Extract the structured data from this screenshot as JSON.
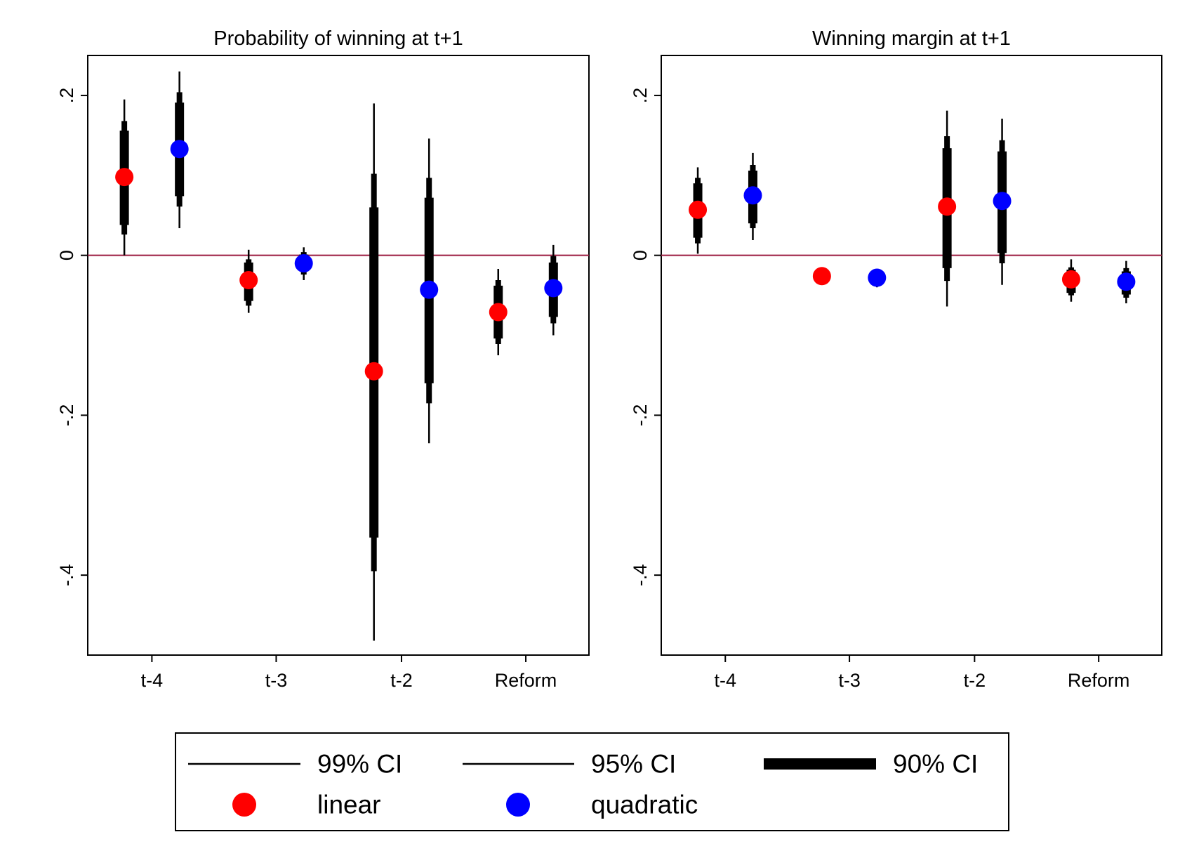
{
  "legend": {
    "items": [
      {
        "label": "99% CI",
        "kind": "ci99"
      },
      {
        "label": "95% CI",
        "kind": "ci95"
      },
      {
        "label": "90% CI",
        "kind": "ci90"
      },
      {
        "label": "linear",
        "kind": "marker",
        "color": "#ff0000"
      },
      {
        "label": "quadratic",
        "kind": "marker",
        "color": "#0000ff"
      }
    ]
  },
  "colors": {
    "linear": "#ff0000",
    "quadratic": "#0000ff",
    "zero_line": "#9b1b40",
    "ci": "#000000"
  },
  "chart_data": [
    {
      "type": "scatter",
      "title": "Probability of winning at t+1",
      "xlabel": "",
      "ylabel": "",
      "categories": [
        "t-4",
        "t-3",
        "t-2",
        "Reform"
      ],
      "ylim": [
        -0.5,
        0.25
      ],
      "yticks": [
        ".2",
        "0",
        "-.2",
        "-.4"
      ],
      "ytick_values": [
        0.2,
        0,
        -0.2,
        -0.4
      ],
      "reference_line": 0,
      "grid": false,
      "series": [
        {
          "name": "linear",
          "color": "#ff0000",
          "points": [
            {
              "category": "t-4",
              "estimate": 0.098,
              "ci90": [
                0.038,
                0.156
              ],
              "ci95": [
                0.026,
                0.168
              ],
              "ci99": [
                0.0,
                0.195
              ]
            },
            {
              "category": "t-3",
              "estimate": -0.031,
              "ci90": [
                -0.057,
                -0.009
              ],
              "ci95": [
                -0.063,
                -0.005
              ],
              "ci99": [
                -0.072,
                0.007
              ]
            },
            {
              "category": "t-2",
              "estimate": -0.145,
              "ci90": [
                -0.353,
                0.06
              ],
              "ci95": [
                -0.395,
                0.102
              ],
              "ci99": [
                -0.482,
                0.19
              ]
            },
            {
              "category": "Reform",
              "estimate": -0.071,
              "ci90": [
                -0.104,
                -0.038
              ],
              "ci95": [
                -0.111,
                -0.031
              ],
              "ci99": [
                -0.125,
                -0.017
              ]
            }
          ]
        },
        {
          "name": "quadratic",
          "color": "#0000ff",
          "points": [
            {
              "category": "t-4",
              "estimate": 0.133,
              "ci90": [
                0.074,
                0.191
              ],
              "ci95": [
                0.061,
                0.204
              ],
              "ci99": [
                0.034,
                0.23
              ]
            },
            {
              "category": "t-3",
              "estimate": -0.01,
              "ci90": [
                -0.02,
                0.001
              ],
              "ci95": [
                -0.024,
                0.004
              ],
              "ci99": [
                -0.031,
                0.01
              ]
            },
            {
              "category": "t-2",
              "estimate": -0.043,
              "ci90": [
                -0.16,
                0.072
              ],
              "ci95": [
                -0.185,
                0.097
              ],
              "ci99": [
                -0.235,
                0.146
              ]
            },
            {
              "category": "Reform",
              "estimate": -0.041,
              "ci90": [
                -0.077,
                -0.009
              ],
              "ci95": [
                -0.085,
                -0.001
              ],
              "ci99": [
                -0.1,
                0.013
              ]
            }
          ]
        }
      ]
    },
    {
      "type": "scatter",
      "title": "Winning margin at t+1",
      "xlabel": "",
      "ylabel": "",
      "categories": [
        "t-4",
        "t-3",
        "t-2",
        "Reform"
      ],
      "ylim": [
        -0.5,
        0.25
      ],
      "yticks": [
        ".2",
        "0",
        "-.2",
        "-.4"
      ],
      "ytick_values": [
        0.2,
        0,
        -0.2,
        -0.4
      ],
      "reference_line": 0,
      "grid": false,
      "series": [
        {
          "name": "linear",
          "color": "#ff0000",
          "points": [
            {
              "category": "t-4",
              "estimate": 0.057,
              "ci90": [
                0.022,
                0.09
              ],
              "ci95": [
                0.015,
                0.097
              ],
              "ci99": [
                0.002,
                0.11
              ]
            },
            {
              "category": "t-3",
              "estimate": -0.026,
              "ci90": [
                -0.028,
                -0.024
              ],
              "ci95": [
                -0.029,
                -0.023
              ],
              "ci99": [
                -0.03,
                -0.022
              ]
            },
            {
              "category": "t-2",
              "estimate": 0.061,
              "ci90": [
                -0.016,
                0.134
              ],
              "ci95": [
                -0.032,
                0.149
              ],
              "ci99": [
                -0.064,
                0.181
              ]
            },
            {
              "category": "Reform",
              "estimate": -0.03,
              "ci90": [
                -0.047,
                -0.018
              ],
              "ci95": [
                -0.05,
                -0.015
              ],
              "ci99": [
                -0.058,
                -0.005
              ]
            }
          ]
        },
        {
          "name": "quadratic",
          "color": "#0000ff",
          "points": [
            {
              "category": "t-4",
              "estimate": 0.075,
              "ci90": [
                0.04,
                0.106
              ],
              "ci95": [
                0.034,
                0.113
              ],
              "ci99": [
                0.019,
                0.128
              ]
            },
            {
              "category": "t-3",
              "estimate": -0.028,
              "ci90": [
                -0.031,
                -0.025
              ],
              "ci95": [
                -0.033,
                -0.023
              ],
              "ci99": [
                -0.04,
                -0.02
              ]
            },
            {
              "category": "t-2",
              "estimate": 0.068,
              "ci90": [
                0.003,
                0.13
              ],
              "ci95": [
                -0.01,
                0.144
              ],
              "ci99": [
                -0.037,
                0.171
              ]
            },
            {
              "category": "Reform",
              "estimate": -0.033,
              "ci90": [
                -0.049,
                -0.02
              ],
              "ci95": [
                -0.053,
                -0.016
              ],
              "ci99": [
                -0.06,
                -0.007
              ]
            }
          ]
        }
      ]
    }
  ]
}
